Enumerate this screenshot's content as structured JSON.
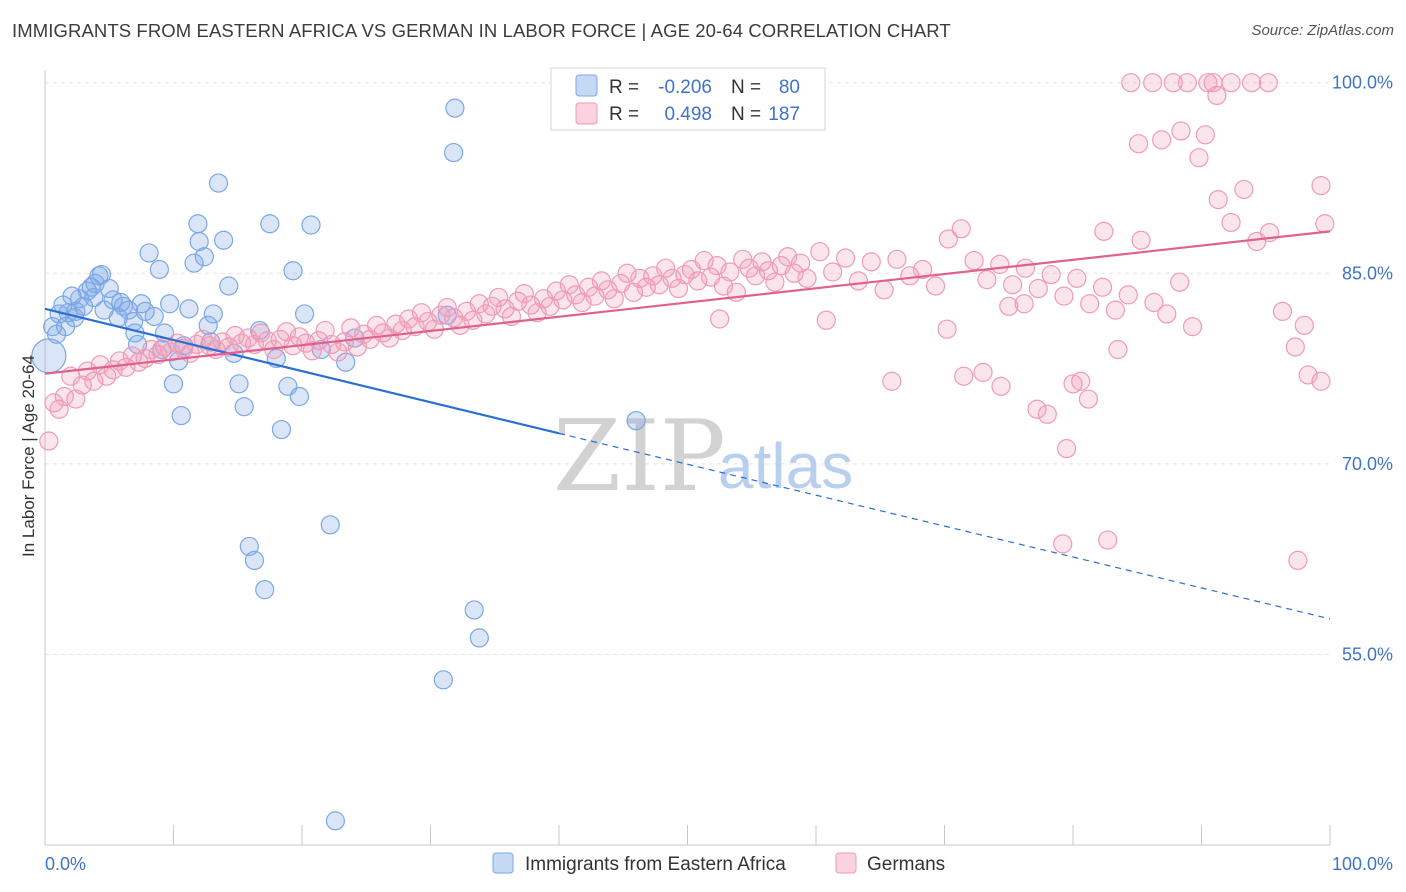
{
  "title": "IMMIGRANTS FROM EASTERN AFRICA VS GERMAN IN LABOR FORCE | AGE 20-64 CORRELATION CHART",
  "source": "Source: ZipAtlas.com",
  "watermark": {
    "zip": "ZIP",
    "atlas": "atlas"
  },
  "legend": {
    "r_label": "R =",
    "n_label": "N =",
    "rows": [
      {
        "r": "-0.206",
        "n": "80",
        "color": "#7aa7e6"
      },
      {
        "r": "0.498",
        "n": "187",
        "color": "#f09ab6"
      }
    ]
  },
  "bottom_legend": [
    "Immigrants from Eastern Africa",
    "Germans"
  ],
  "chart_data": {
    "type": "scatter",
    "title": "IMMIGRANTS FROM EASTERN AFRICA VS GERMAN IN LABOR FORCE | AGE 20-64 CORRELATION CHART",
    "xlabel": "",
    "ylabel": "In Labor Force | Age 20-64",
    "xlim": [
      0,
      100
    ],
    "ylim": [
      40,
      101
    ],
    "x_tick_labels": [
      "0.0%",
      "100.0%"
    ],
    "y_ticks": [
      {
        "value": 100,
        "label": "100.0%"
      },
      {
        "value": 85,
        "label": "85.0%"
      },
      {
        "value": 70,
        "label": "70.0%"
      },
      {
        "value": 55,
        "label": "55.0%"
      }
    ],
    "grid": true,
    "legend_position": "top-center",
    "series": [
      {
        "name": "Immigrants from Eastern Africa",
        "color": "#7aa7e6",
        "line_color": "#2a6fd1",
        "r": -0.206,
        "n": 80,
        "trend": {
          "x0": 0,
          "y0": 82.2,
          "x1": 40,
          "y1": 72.4,
          "dash_to_x": 100,
          "dash_to_y": 57.8
        },
        "points": [
          [
            0.3,
            78.5
          ],
          [
            0.6,
            80.8
          ],
          [
            0.9,
            80.2
          ],
          [
            1.1,
            81.8
          ],
          [
            1.4,
            82.5
          ],
          [
            1.8,
            81.9
          ],
          [
            2.1,
            83.2
          ],
          [
            2.4,
            82.0
          ],
          [
            2.7,
            83.0
          ],
          [
            3.0,
            82.4
          ],
          [
            3.3,
            83.6
          ],
          [
            3.6,
            83.9
          ],
          [
            3.9,
            84.2
          ],
          [
            4.2,
            84.8
          ],
          [
            4.6,
            82.1
          ],
          [
            5.0,
            83.8
          ],
          [
            5.3,
            82.9
          ],
          [
            5.7,
            81.5
          ],
          [
            6.1,
            82.4
          ],
          [
            6.5,
            82.1
          ],
          [
            6.9,
            81.2
          ],
          [
            7.2,
            79.4
          ],
          [
            7.5,
            82.6
          ],
          [
            7.8,
            82.0
          ],
          [
            8.1,
            86.6
          ],
          [
            8.5,
            81.6
          ],
          [
            8.9,
            85.3
          ],
          [
            9.3,
            80.3
          ],
          [
            9.7,
            82.6
          ],
          [
            10.0,
            76.3
          ],
          [
            10.4,
            78.1
          ],
          [
            10.8,
            79.3
          ],
          [
            11.2,
            82.2
          ],
          [
            11.6,
            85.8
          ],
          [
            12.0,
            87.5
          ],
          [
            12.4,
            86.3
          ],
          [
            12.7,
            80.9
          ],
          [
            13.1,
            81.8
          ],
          [
            13.5,
            92.1
          ],
          [
            13.9,
            87.6
          ],
          [
            14.3,
            84.0
          ],
          [
            14.7,
            78.7
          ],
          [
            15.1,
            76.3
          ],
          [
            15.5,
            74.5
          ],
          [
            15.9,
            63.5
          ],
          [
            16.3,
            62.4
          ],
          [
            16.7,
            80.5
          ],
          [
            17.1,
            60.1
          ],
          [
            17.5,
            88.9
          ],
          [
            18.0,
            78.3
          ],
          [
            18.4,
            72.7
          ],
          [
            18.9,
            76.1
          ],
          [
            19.3,
            85.2
          ],
          [
            19.8,
            75.3
          ],
          [
            20.2,
            81.8
          ],
          [
            20.7,
            88.8
          ],
          [
            21.5,
            79.0
          ],
          [
            22.2,
            65.2
          ],
          [
            22.6,
            41.9
          ],
          [
            23.4,
            78.0
          ],
          [
            24.1,
            79.9
          ],
          [
            31.8,
            94.5
          ],
          [
            31.3,
            81.7
          ],
          [
            31.0,
            53.0
          ],
          [
            31.9,
            98.0
          ],
          [
            33.4,
            58.5
          ],
          [
            33.8,
            56.3
          ],
          [
            40.9,
            100
          ],
          [
            44.7,
            100
          ],
          [
            46.0,
            73.4
          ],
          [
            1.6,
            80.8
          ],
          [
            2.3,
            81.5
          ],
          [
            3.8,
            83.1
          ],
          [
            4.4,
            84.9
          ],
          [
            5.9,
            82.7
          ],
          [
            7.0,
            80.3
          ],
          [
            9.1,
            79.0
          ],
          [
            12.9,
            79.6
          ],
          [
            10.6,
            73.8
          ],
          [
            11.9,
            88.9
          ]
        ]
      },
      {
        "name": "Germans",
        "color": "#f09ab6",
        "line_color": "#e0608f",
        "r": 0.498,
        "n": 187,
        "trend": {
          "x0": 0,
          "y0": 77.1,
          "x1": 100,
          "y1": 88.3
        },
        "points": [
          [
            0.3,
            71.8
          ],
          [
            0.7,
            74.8
          ],
          [
            1.1,
            74.3
          ],
          [
            1.5,
            75.3
          ],
          [
            2.0,
            76.9
          ],
          [
            2.4,
            75.1
          ],
          [
            2.9,
            76.2
          ],
          [
            3.3,
            77.3
          ],
          [
            3.8,
            76.5
          ],
          [
            4.3,
            77.8
          ],
          [
            4.8,
            76.9
          ],
          [
            5.3,
            77.4
          ],
          [
            5.8,
            78.1
          ],
          [
            6.3,
            77.6
          ],
          [
            6.8,
            78.5
          ],
          [
            7.3,
            78.0
          ],
          [
            7.8,
            78.3
          ],
          [
            8.3,
            79.0
          ],
          [
            8.8,
            78.6
          ],
          [
            9.3,
            79.2
          ],
          [
            9.8,
            78.8
          ],
          [
            10.3,
            79.5
          ],
          [
            10.8,
            79.1
          ],
          [
            11.3,
            78.7
          ],
          [
            11.8,
            79.4
          ],
          [
            12.3,
            79.8
          ],
          [
            12.8,
            79.3
          ],
          [
            13.3,
            79.0
          ],
          [
            13.8,
            79.6
          ],
          [
            14.3,
            79.2
          ],
          [
            14.8,
            80.1
          ],
          [
            15.3,
            79.5
          ],
          [
            15.8,
            79.9
          ],
          [
            16.3,
            79.4
          ],
          [
            16.8,
            80.3
          ],
          [
            17.3,
            79.7
          ],
          [
            17.8,
            79.0
          ],
          [
            18.3,
            79.8
          ],
          [
            18.8,
            80.4
          ],
          [
            19.3,
            79.3
          ],
          [
            19.8,
            80.0
          ],
          [
            20.3,
            79.5
          ],
          [
            20.8,
            78.9
          ],
          [
            21.3,
            79.7
          ],
          [
            21.8,
            80.5
          ],
          [
            22.3,
            79.4
          ],
          [
            22.8,
            78.8
          ],
          [
            23.3,
            79.6
          ],
          [
            23.8,
            80.7
          ],
          [
            24.3,
            79.2
          ],
          [
            24.8,
            80.2
          ],
          [
            25.3,
            79.8
          ],
          [
            25.8,
            80.9
          ],
          [
            26.3,
            80.3
          ],
          [
            26.8,
            79.9
          ],
          [
            27.3,
            81.0
          ],
          [
            27.8,
            80.5
          ],
          [
            28.3,
            81.4
          ],
          [
            28.8,
            80.8
          ],
          [
            29.3,
            81.9
          ],
          [
            29.8,
            81.2
          ],
          [
            30.3,
            80.6
          ],
          [
            30.8,
            81.7
          ],
          [
            31.3,
            82.3
          ],
          [
            31.8,
            81.5
          ],
          [
            32.3,
            80.9
          ],
          [
            32.8,
            82.0
          ],
          [
            33.3,
            81.3
          ],
          [
            33.8,
            82.6
          ],
          [
            34.3,
            81.8
          ],
          [
            34.8,
            82.4
          ],
          [
            35.3,
            83.1
          ],
          [
            35.8,
            82.2
          ],
          [
            36.3,
            81.6
          ],
          [
            36.8,
            82.8
          ],
          [
            37.3,
            83.4
          ],
          [
            37.8,
            82.5
          ],
          [
            38.3,
            81.9
          ],
          [
            38.8,
            83.0
          ],
          [
            39.3,
            82.4
          ],
          [
            39.8,
            83.6
          ],
          [
            40.3,
            82.9
          ],
          [
            40.8,
            84.1
          ],
          [
            41.3,
            83.3
          ],
          [
            41.8,
            82.7
          ],
          [
            42.3,
            83.9
          ],
          [
            42.8,
            83.2
          ],
          [
            43.3,
            84.4
          ],
          [
            43.8,
            83.7
          ],
          [
            44.3,
            83.0
          ],
          [
            44.8,
            84.2
          ],
          [
            45.3,
            85.0
          ],
          [
            45.8,
            83.5
          ],
          [
            46.3,
            84.6
          ],
          [
            46.8,
            83.9
          ],
          [
            47.3,
            84.8
          ],
          [
            47.8,
            84.1
          ],
          [
            48.3,
            85.4
          ],
          [
            48.8,
            84.6
          ],
          [
            49.3,
            83.8
          ],
          [
            49.8,
            84.9
          ],
          [
            50.3,
            85.3
          ],
          [
            50.8,
            84.4
          ],
          [
            51.3,
            86.0
          ],
          [
            51.8,
            84.7
          ],
          [
            52.3,
            85.6
          ],
          [
            52.8,
            84.0
          ],
          [
            53.3,
            85.1
          ],
          [
            53.8,
            83.5
          ],
          [
            54.3,
            86.1
          ],
          [
            54.8,
            85.4
          ],
          [
            55.3,
            84.8
          ],
          [
            55.8,
            85.9
          ],
          [
            56.3,
            85.2
          ],
          [
            56.8,
            84.3
          ],
          [
            57.3,
            85.6
          ],
          [
            57.8,
            86.3
          ],
          [
            58.3,
            85.0
          ],
          [
            58.8,
            85.8
          ],
          [
            59.3,
            84.6
          ],
          [
            60.3,
            86.7
          ],
          [
            61.3,
            85.1
          ],
          [
            62.3,
            86.2
          ],
          [
            63.3,
            84.4
          ],
          [
            64.3,
            85.9
          ],
          [
            65.3,
            83.7
          ],
          [
            66.3,
            86.1
          ],
          [
            67.3,
            84.8
          ],
          [
            68.3,
            85.3
          ],
          [
            69.3,
            84.0
          ],
          [
            70.3,
            87.7
          ],
          [
            71.3,
            88.5
          ],
          [
            72.3,
            86.0
          ],
          [
            73.3,
            84.5
          ],
          [
            74.3,
            85.7
          ],
          [
            75.3,
            84.1
          ],
          [
            76.3,
            85.4
          ],
          [
            77.3,
            83.8
          ],
          [
            78.3,
            84.9
          ],
          [
            79.3,
            83.2
          ],
          [
            80.3,
            84.6
          ],
          [
            81.3,
            82.6
          ],
          [
            82.3,
            83.9
          ],
          [
            83.3,
            82.1
          ],
          [
            84.3,
            83.3
          ],
          [
            85.3,
            87.6
          ],
          [
            86.3,
            82.7
          ],
          [
            87.3,
            81.8
          ],
          [
            88.3,
            84.3
          ],
          [
            89.3,
            80.8
          ],
          [
            90.3,
            95.9
          ],
          [
            91.3,
            90.8
          ],
          [
            92.3,
            89.0
          ],
          [
            93.3,
            91.6
          ],
          [
            94.3,
            87.5
          ],
          [
            95.3,
            88.2
          ],
          [
            96.3,
            82.0
          ],
          [
            97.3,
            79.2
          ],
          [
            98.3,
            77.0
          ],
          [
            99.3,
            76.5
          ],
          [
            52.5,
            81.4
          ],
          [
            60.8,
            81.3
          ],
          [
            65.9,
            76.5
          ],
          [
            70.2,
            80.6
          ],
          [
            71.5,
            76.9
          ],
          [
            73.0,
            77.2
          ],
          [
            74.4,
            76.1
          ],
          [
            75.0,
            82.4
          ],
          [
            76.2,
            82.6
          ],
          [
            77.2,
            74.3
          ],
          [
            78.0,
            73.9
          ],
          [
            79.5,
            71.2
          ],
          [
            80.6,
            76.5
          ],
          [
            81.2,
            75.1
          ],
          [
            82.4,
            88.3
          ],
          [
            83.5,
            79.0
          ],
          [
            85.1,
            95.2
          ],
          [
            86.9,
            95.5
          ],
          [
            87.8,
            100
          ],
          [
            88.4,
            96.2
          ],
          [
            89.8,
            94.1
          ],
          [
            90.9,
            100
          ],
          [
            91.2,
            99.0
          ],
          [
            92.3,
            100
          ],
          [
            93.9,
            100
          ],
          [
            95.2,
            100
          ],
          [
            97.5,
            62.4
          ],
          [
            99.3,
            91.9
          ],
          [
            79.2,
            63.7
          ],
          [
            82.7,
            64.0
          ],
          [
            80.0,
            76.3
          ],
          [
            84.5,
            100
          ],
          [
            86.2,
            100
          ],
          [
            88.9,
            100
          ],
          [
            90.5,
            100
          ],
          [
            99.6,
            88.9
          ],
          [
            98.0,
            80.9
          ]
        ]
      }
    ]
  }
}
